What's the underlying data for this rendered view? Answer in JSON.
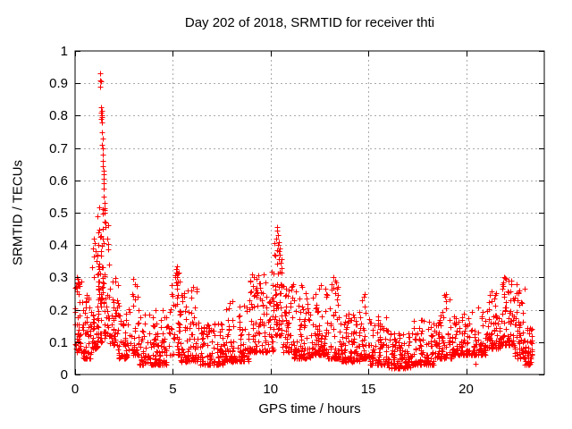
{
  "chart_data": {
    "type": "scatter",
    "title": "Day 202 of 2018, SRMTID for receiver thti",
    "xlabel": "GPS time / hours",
    "ylabel": "SRMTID / TECUs",
    "xlim": [
      0,
      24
    ],
    "ylim": [
      0,
      1
    ],
    "xtick_values": [
      0,
      5,
      10,
      15,
      20
    ],
    "xtick_labels": [
      "0",
      "5",
      "10",
      "15",
      "20"
    ],
    "ytick_values": [
      0,
      0.1,
      0.2,
      0.3,
      0.4,
      0.5,
      0.6,
      0.7,
      0.8,
      0.9,
      1
    ],
    "ytick_labels": [
      "0",
      "0.1",
      "0.2",
      "0.3",
      "0.4",
      "0.5",
      "0.6",
      "0.7",
      "0.8",
      "0.9",
      "1"
    ],
    "grid": true,
    "grid_style": "dashed",
    "grid_color": "#aaaaaa",
    "frame_color": "#000000",
    "marker": "plus",
    "marker_color": "#ff0000",
    "x_data_range": [
      0,
      23.4
    ],
    "peak_points": [
      [
        1.28,
        0.93
      ],
      [
        1.3,
        0.91
      ],
      [
        1.31,
        0.905
      ],
      [
        1.29,
        0.89
      ],
      [
        1.33,
        0.825
      ],
      [
        1.34,
        0.81
      ],
      [
        1.35,
        0.8
      ],
      [
        1.36,
        0.815
      ],
      [
        1.33,
        0.79
      ],
      [
        1.37,
        0.795
      ],
      [
        1.36,
        0.78
      ],
      [
        1.38,
        0.75
      ],
      [
        1.39,
        0.71
      ],
      [
        1.4,
        0.73
      ],
      [
        1.41,
        0.7
      ],
      [
        1.42,
        0.68
      ],
      [
        1.41,
        0.645
      ],
      [
        1.43,
        0.66
      ],
      [
        1.44,
        0.63
      ],
      [
        1.45,
        0.605
      ],
      [
        1.46,
        0.62
      ],
      [
        1.44,
        0.575
      ],
      [
        1.47,
        0.59
      ],
      [
        1.48,
        0.55
      ],
      [
        1.49,
        0.515
      ],
      [
        1.5,
        0.53
      ],
      [
        1.52,
        0.5
      ],
      [
        1.54,
        0.47
      ],
      [
        1.55,
        0.455
      ],
      [
        0.95,
        0.42
      ],
      [
        1.0,
        0.405
      ],
      [
        0.92,
        0.39
      ],
      [
        1.05,
        0.38
      ],
      [
        0.98,
        0.365
      ],
      [
        1.08,
        0.35
      ],
      [
        10.35,
        0.455
      ],
      [
        10.33,
        0.445
      ],
      [
        10.38,
        0.43
      ],
      [
        10.3,
        0.42
      ],
      [
        10.42,
        0.41
      ],
      [
        10.36,
        0.4
      ],
      [
        10.45,
        0.39
      ],
      [
        10.4,
        0.38
      ],
      [
        10.48,
        0.37
      ],
      [
        10.44,
        0.355
      ],
      [
        10.52,
        0.345
      ],
      [
        10.55,
        0.33
      ],
      [
        5.2,
        0.335
      ],
      [
        5.15,
        0.325
      ],
      [
        5.28,
        0.315
      ],
      [
        5.1,
        0.3
      ],
      [
        9.05,
        0.31
      ],
      [
        9.12,
        0.3
      ],
      [
        8.98,
        0.29
      ],
      [
        2.98,
        0.295
      ],
      [
        3.05,
        0.28
      ],
      [
        13.2,
        0.3
      ],
      [
        13.28,
        0.29
      ],
      [
        13.1,
        0.28
      ],
      [
        21.95,
        0.3
      ],
      [
        22.05,
        0.295
      ],
      [
        22.18,
        0.29
      ],
      [
        21.88,
        0.285
      ],
      [
        22.3,
        0.28
      ],
      [
        11.55,
        0.275
      ],
      [
        11.62,
        0.27
      ],
      [
        12.55,
        0.275
      ],
      [
        12.48,
        0.265
      ],
      [
        0.1,
        0.3
      ],
      [
        0.15,
        0.285
      ],
      [
        0.06,
        0.27
      ],
      [
        18.95,
        0.25
      ],
      [
        18.88,
        0.245
      ],
      [
        14.8,
        0.25
      ],
      [
        14.75,
        0.24
      ],
      [
        6.05,
        0.27
      ],
      [
        5.95,
        0.26
      ],
      [
        22.6,
        0.28
      ],
      [
        22.72,
        0.26
      ],
      [
        22.85,
        0.22
      ],
      [
        20.5,
        0.033
      ],
      [
        23.3,
        0.1
      ],
      [
        23.35,
        0.06
      ]
    ],
    "scatter_segments_schema": [
      "x_start",
      "x_end",
      "count",
      "y_min",
      "y_max",
      "bias_exponent"
    ],
    "scatter_segments": [
      [
        0.0,
        0.35,
        40,
        0.07,
        0.3,
        1.6
      ],
      [
        0.35,
        0.85,
        50,
        0.05,
        0.26,
        2.0
      ],
      [
        0.85,
        1.15,
        35,
        0.08,
        0.38,
        1.8
      ],
      [
        1.15,
        1.45,
        40,
        0.22,
        0.55,
        1.3
      ],
      [
        1.15,
        1.5,
        30,
        0.1,
        0.3,
        1.5
      ],
      [
        1.45,
        1.75,
        30,
        0.12,
        0.52,
        2.2
      ],
      [
        1.75,
        2.2,
        45,
        0.09,
        0.32,
        2.2
      ],
      [
        2.2,
        2.9,
        60,
        0.05,
        0.22,
        2.2
      ],
      [
        2.9,
        3.25,
        35,
        0.06,
        0.28,
        2.4
      ],
      [
        3.25,
        4.8,
        130,
        0.03,
        0.2,
        2.6
      ],
      [
        4.8,
        5.4,
        55,
        0.06,
        0.32,
        2.2
      ],
      [
        5.4,
        6.4,
        85,
        0.04,
        0.27,
        2.6
      ],
      [
        6.4,
        7.6,
        100,
        0.03,
        0.16,
        2.2
      ],
      [
        7.6,
        8.9,
        110,
        0.04,
        0.23,
        2.4
      ],
      [
        8.9,
        9.35,
        45,
        0.07,
        0.3,
        1.8
      ],
      [
        9.35,
        10.15,
        75,
        0.07,
        0.33,
        2.0
      ],
      [
        10.15,
        10.6,
        50,
        0.12,
        0.44,
        1.6
      ],
      [
        10.6,
        11.15,
        50,
        0.07,
        0.28,
        2.2
      ],
      [
        11.15,
        12.05,
        80,
        0.05,
        0.27,
        2.6
      ],
      [
        12.05,
        12.85,
        70,
        0.06,
        0.27,
        2.3
      ],
      [
        12.85,
        13.5,
        60,
        0.05,
        0.29,
        2.3
      ],
      [
        13.5,
        14.55,
        90,
        0.04,
        0.19,
        2.4
      ],
      [
        14.55,
        15.05,
        45,
        0.05,
        0.24,
        2.4
      ],
      [
        15.05,
        16.05,
        85,
        0.03,
        0.18,
        2.4
      ],
      [
        16.05,
        17.15,
        95,
        0.02,
        0.13,
        2.2
      ],
      [
        17.15,
        18.4,
        105,
        0.03,
        0.17,
        2.4
      ],
      [
        18.4,
        19.3,
        80,
        0.05,
        0.24,
        2.4
      ],
      [
        19.3,
        20.25,
        80,
        0.06,
        0.19,
        2.3
      ],
      [
        20.25,
        21.05,
        70,
        0.06,
        0.21,
        2.3
      ],
      [
        21.05,
        21.75,
        65,
        0.08,
        0.26,
        2.2
      ],
      [
        21.75,
        22.45,
        65,
        0.09,
        0.3,
        2.0
      ],
      [
        22.45,
        23.0,
        55,
        0.05,
        0.27,
        2.0
      ],
      [
        23.0,
        23.4,
        40,
        0.03,
        0.15,
        2.0
      ]
    ]
  }
}
